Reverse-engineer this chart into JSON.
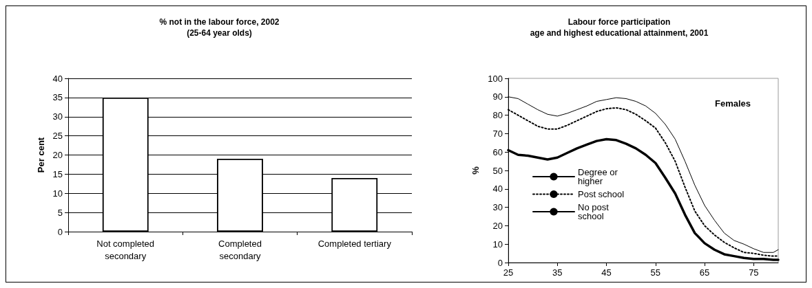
{
  "chart_data": [
    {
      "type": "bar",
      "title": "% not in the labour force, 2002\n(25-64 year olds)",
      "ylabel": "Per cent",
      "categories": [
        "Not completed\nsecondary",
        "Completed\nsecondary",
        "Completed tertiary"
      ],
      "values": [
        35,
        19,
        14
      ],
      "color": "#ffffff",
      "ylim": [
        0,
        40
      ],
      "yticks": [
        0,
        5,
        10,
        15,
        20,
        25,
        30,
        35,
        40
      ],
      "grid": "y",
      "legend": false
    },
    {
      "type": "line",
      "title": "Labour force participation\nage and highest educational attainment, 2001",
      "ylabel": "%",
      "xlim": [
        25,
        80
      ],
      "xticks": [
        25,
        35,
        45,
        55,
        65,
        75
      ],
      "ylim": [
        0,
        100
      ],
      "yticks": [
        0,
        10,
        20,
        30,
        40,
        50,
        60,
        70,
        80,
        90,
        100
      ],
      "grid": false,
      "legend": "left",
      "marker": "none",
      "annotations": [
        "Females"
      ],
      "x": [
        25,
        27,
        29,
        31,
        33,
        35,
        37,
        39,
        41,
        43,
        45,
        47,
        49,
        51,
        53,
        55,
        57,
        59,
        61,
        63,
        65,
        67,
        69,
        71,
        73,
        75,
        77,
        79,
        80
      ],
      "series": [
        {
          "name": "Degree or higher",
          "color": "#000000",
          "line_style": "solid",
          "values": [
            90,
            89,
            86,
            83,
            80.5,
            79.5,
            81,
            83,
            85,
            87.5,
            88.5,
            89.5,
            89,
            87.5,
            85,
            81,
            75,
            67,
            55,
            42,
            31,
            23,
            16,
            12,
            10,
            7.5,
            5.5,
            5.5,
            7
          ]
        },
        {
          "name": "Post school",
          "color": "#000000",
          "line_style": "dotted",
          "values": [
            83,
            80,
            77,
            74,
            72.5,
            72.5,
            74.5,
            77,
            79.5,
            82,
            83.5,
            84,
            83,
            80.5,
            77,
            73,
            65,
            55,
            41,
            28,
            20,
            15,
            11,
            8,
            5.5,
            5,
            4,
            3.5,
            3.5
          ]
        },
        {
          "name": "No post school",
          "color": "#000000",
          "line_style": "solid",
          "values": [
            61,
            58.5,
            58,
            57,
            56,
            57,
            59.5,
            62,
            64,
            66,
            67,
            66.5,
            64.5,
            62,
            58.5,
            54,
            46,
            37.5,
            26,
            16,
            10.5,
            7,
            4.5,
            3.5,
            2.5,
            2,
            2,
            1.5,
            1.5
          ]
        }
      ]
    }
  ]
}
